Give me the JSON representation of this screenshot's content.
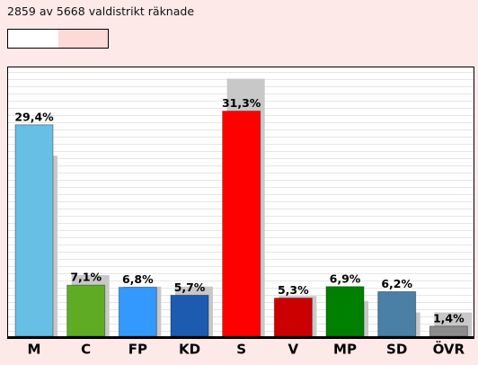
{
  "header": {
    "counted": 2859,
    "of": "av",
    "total": 5668,
    "unit": "valdistrikt räknade"
  },
  "chart_data": {
    "type": "bar",
    "categories": [
      "M",
      "C",
      "FP",
      "KD",
      "S",
      "V",
      "MP",
      "SD",
      "ÖVR"
    ],
    "ylim": [
      0,
      37.5
    ],
    "series": [
      {
        "values": [
          25.1,
          8.5,
          6.9,
          6.9,
          35.8,
          5.6,
          4.9,
          3.3,
          3.3
        ],
        "color": "#c8c8c8"
      },
      {
        "values": [
          29.4,
          7.1,
          6.8,
          5.7,
          31.3,
          5.3,
          6.9,
          6.2,
          1.4
        ],
        "value_labels": [
          "29,4%",
          "7,1%",
          "6,8%",
          "5,7%",
          "31,3%",
          "5,3%",
          "6,9%",
          "6,2%",
          "1,4%"
        ],
        "colors": [
          "#67bfe6",
          "#5fac24",
          "#3399ff",
          "#1c5bb0",
          "#ff0000",
          "#cc0000",
          "#008000",
          "#4a7fa6",
          "#8c8c8c"
        ]
      }
    ]
  }
}
